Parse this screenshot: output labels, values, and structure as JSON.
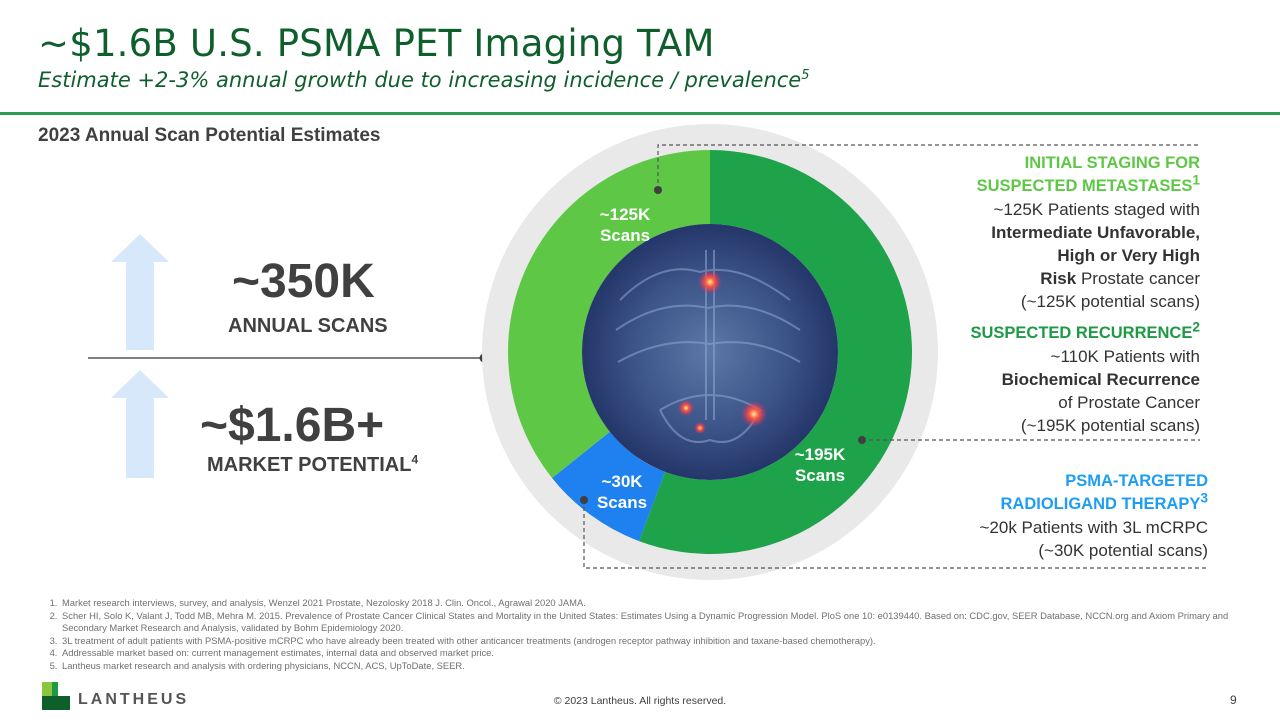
{
  "header": {
    "title": "~$1.6B U.S. PSMA PET Imaging TAM",
    "subtitle": "Estimate +2-3% annual growth due to increasing incidence / prevalence",
    "subtitle_sup": "5"
  },
  "section_title": "2023 Annual Scan Potential Estimates",
  "metrics": {
    "scans_value": "~350K",
    "scans_label": "ANNUAL SCANS",
    "market_value": "~$1.6B+",
    "market_label": "MARKET POTENTIAL",
    "market_sup": "4"
  },
  "chart_data": {
    "type": "pie",
    "categories": [
      "Initial staging for suspected metastases",
      "Suspected recurrence",
      "PSMA-targeted radioligand therapy"
    ],
    "values": [
      125,
      195,
      30
    ],
    "unit": "K scans",
    "colors": [
      "#5ec846",
      "#1ea34a",
      "#1f80f0"
    ],
    "labels": [
      {
        "line1": "~125K",
        "line2": "Scans"
      },
      {
        "line1": "~195K",
        "line2": "Scans"
      },
      {
        "line1": "~30K",
        "line2": "Scans"
      }
    ]
  },
  "callouts": {
    "staging": {
      "title1": "INITIAL STAGING FOR",
      "title2": "SUSPECTED METASTASES",
      "sup": "1",
      "l1": "~125K Patients staged with",
      "l2": "Intermediate Unfavorable,",
      "l3": "High or Very High",
      "l4b": "Risk",
      "l4": " Prostate cancer",
      "l5": "(~125K potential scans)"
    },
    "recurrence": {
      "title": "SUSPECTED RECURRENCE",
      "sup": "2",
      "l1": "~110K Patients with",
      "l2": "Biochemical Recurrence",
      "l3": "of Prostate Cancer",
      "l4": "(~195K potential scans)"
    },
    "therapy": {
      "title1": "PSMA-TARGETED",
      "title2": "RADIOLIGAND THERAPY",
      "sup": "3",
      "l1": "~20k Patients with 3L mCRPC",
      "l2": "(~30K potential scans)"
    }
  },
  "footnotes": [
    "Market research interviews, survey, and analysis, Wenzel 2021 Prostate, Nezolosky 2018 J. Clin. Oncol., Agrawal 2020 JAMA.",
    "Scher HI, Solo K, Valant J, Todd MB, Mehra M. 2015. Prevalence of Prostate Cancer Clinical States and Mortality in the United States: Estimates Using a Dynamic Progression Model. PloS one 10: e0139440. Based on: CDC.gov, SEER Database, NCCN.org and Axiom Primary and Secondary Market Research and Analysis, validated by Bohm Epidemiology 2020.",
    "3L treatment of adult patients with PSMA-positive mCRPC who have already been treated with other anticancer treatments (androgen receptor pathway inhibition and taxane-based chemotherapy).",
    "Addressable market based on: current management estimates, internal data and observed market price.",
    "Lantheus market research and analysis with ordering physicians, NCCN, ACS, UpToDate, SEER."
  ],
  "footer": {
    "logo": "LANTHEUS",
    "copyright": "© 2023 Lantheus. All rights reserved.",
    "page": "9"
  }
}
